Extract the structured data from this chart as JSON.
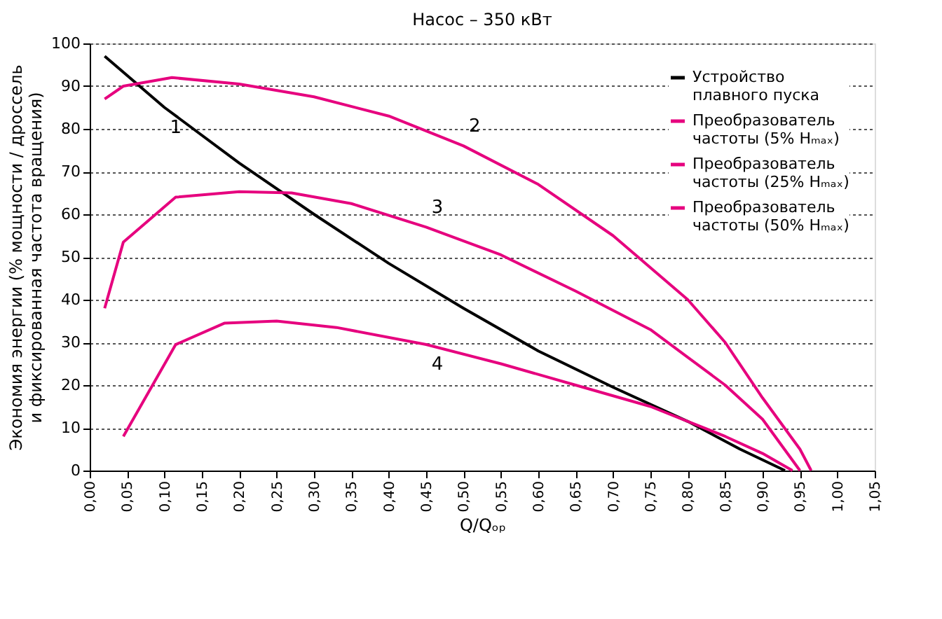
{
  "chart_data": {
    "type": "line",
    "title": "Насос – 350 кВт",
    "xlabel": "Q/Qₒₚ",
    "ylabel": "Экономия энергии (% мощности / дроссель\nи фиксированная частота вращения)",
    "xlim": [
      0,
      1.05
    ],
    "xticks": [
      {
        "value": 0,
        "label": "0,00"
      },
      {
        "value": 0.05,
        "label": "0,05"
      },
      {
        "value": 0.1,
        "label": "0,10"
      },
      {
        "value": 0.15,
        "label": "0,15"
      },
      {
        "value": 0.2,
        "label": "0,20"
      },
      {
        "value": 0.25,
        "label": "0,25"
      },
      {
        "value": 0.3,
        "label": "0,30"
      },
      {
        "value": 0.35,
        "label": "0,35"
      },
      {
        "value": 0.4,
        "label": "0,40"
      },
      {
        "value": 0.45,
        "label": "0,45"
      },
      {
        "value": 0.5,
        "label": "0,50"
      },
      {
        "value": 0.55,
        "label": "0,55"
      },
      {
        "value": 0.6,
        "label": "0,60"
      },
      {
        "value": 0.65,
        "label": "0,65"
      },
      {
        "value": 0.7,
        "label": "0,70"
      },
      {
        "value": 0.75,
        "label": "0,75"
      },
      {
        "value": 0.8,
        "label": "0,80"
      },
      {
        "value": 0.85,
        "label": "0,85"
      },
      {
        "value": 0.9,
        "label": "0,90"
      },
      {
        "value": 0.95,
        "label": "0,95"
      },
      {
        "value": 1.0,
        "label": "1,00"
      },
      {
        "value": 1.05,
        "label": "1,05"
      }
    ],
    "ylim": [
      0,
      100
    ],
    "yticks": [
      0,
      10,
      20,
      30,
      40,
      50,
      60,
      70,
      80,
      90,
      100
    ],
    "grid": "y",
    "legend": "top right",
    "marker": "none",
    "line_style": "solid",
    "series": [
      {
        "name": "Устройство\nплавного пуска",
        "color": "#000000",
        "x": [
          0.02,
          0.1,
          0.2,
          0.3,
          0.4,
          0.5,
          0.6,
          0.7,
          0.8,
          0.87,
          0.93
        ],
        "values": [
          97,
          85,
          72,
          60,
          48.5,
          38,
          28,
          19.5,
          11.5,
          5,
          0
        ]
      },
      {
        "name": "Преобразователь\nчастоты (5% Hₘₐₓ)",
        "color": "#e6007e",
        "x": [
          0.02,
          0.045,
          0.11,
          0.2,
          0.3,
          0.4,
          0.5,
          0.6,
          0.7,
          0.8,
          0.85,
          0.9,
          0.95,
          0.965
        ],
        "values": [
          87,
          90,
          92,
          90.5,
          87.5,
          83,
          76,
          67,
          55,
          40,
          30,
          17,
          5,
          0
        ]
      },
      {
        "name": "Преобразователь\nчастоты (25% Hₘₐₓ)",
        "color": "#e6007e",
        "x": [
          0.02,
          0.045,
          0.115,
          0.2,
          0.27,
          0.35,
          0.45,
          0.55,
          0.65,
          0.75,
          0.85,
          0.9,
          0.95
        ],
        "values": [
          38,
          53.5,
          64,
          65.3,
          65,
          62.5,
          57,
          50.5,
          42,
          33,
          20,
          12,
          0
        ]
      },
      {
        "name": "Преобразователь\nчастоты (50% Hₘₐₓ)",
        "color": "#e6007e",
        "x": [
          0.045,
          0.115,
          0.18,
          0.25,
          0.33,
          0.45,
          0.55,
          0.65,
          0.75,
          0.85,
          0.9,
          0.94
        ],
        "values": [
          8,
          29.5,
          34.5,
          35,
          33.5,
          29.5,
          25,
          20,
          15,
          8,
          4,
          0
        ]
      }
    ],
    "annotations": [
      "1",
      "2",
      "3",
      "4"
    ]
  }
}
